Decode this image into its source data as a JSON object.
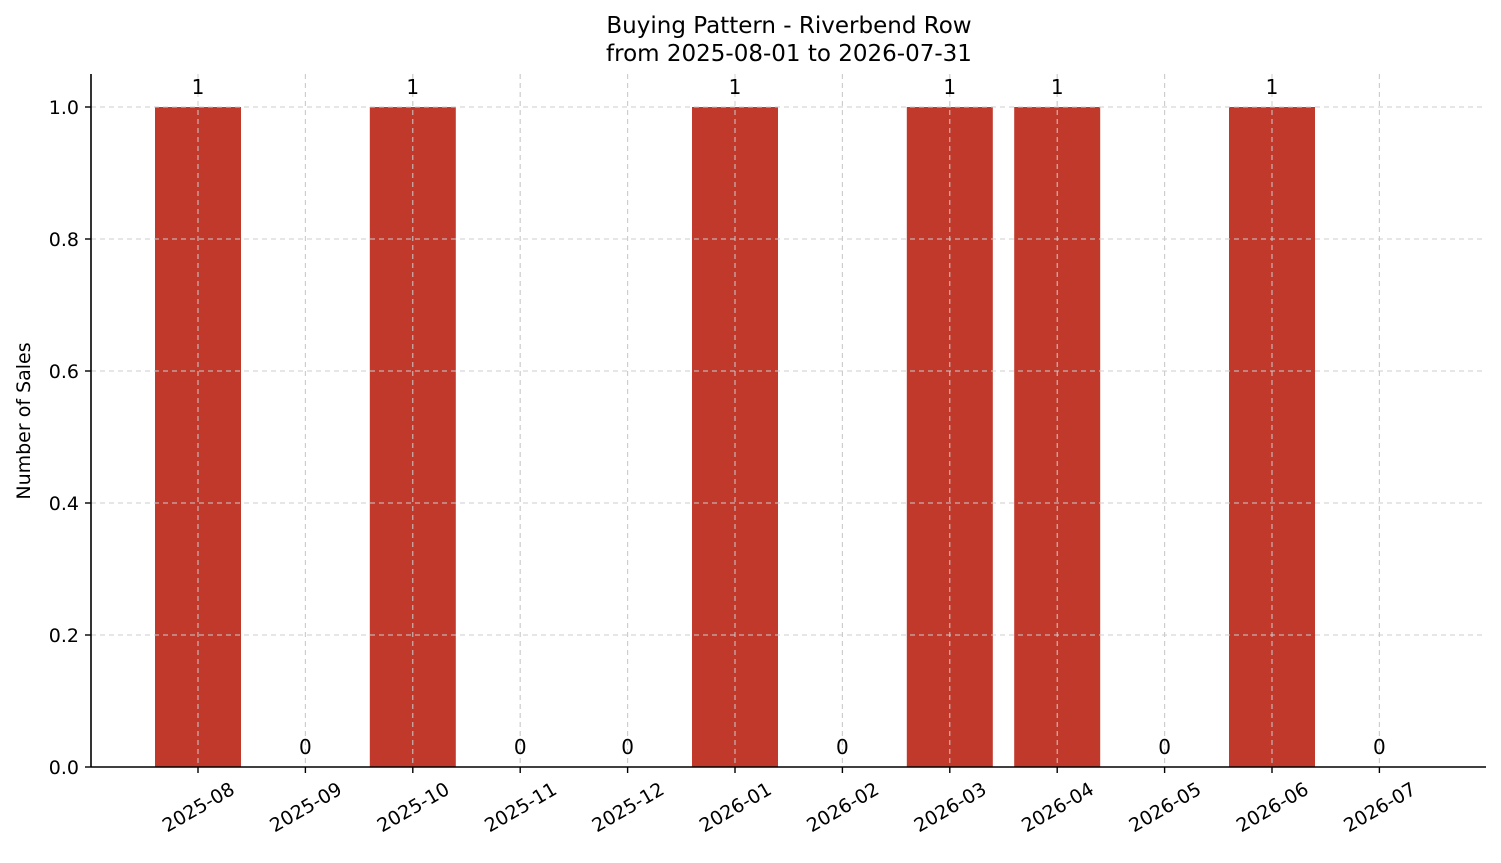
{
  "chart_data": {
    "type": "bar",
    "title": "Buying Pattern - Riverbend Row",
    "subtitle": "from 2025-08-01 to 2026-07-31",
    "xlabel": "",
    "ylabel": "Number of Sales",
    "categories": [
      "2025-08",
      "2025-09",
      "2025-10",
      "2025-11",
      "2025-12",
      "2026-01",
      "2026-02",
      "2026-03",
      "2026-04",
      "2026-05",
      "2026-06",
      "2026-07"
    ],
    "values": [
      1,
      0,
      1,
      0,
      0,
      1,
      0,
      1,
      1,
      0,
      1,
      0
    ],
    "data_labels": [
      "1",
      "0",
      "1",
      "0",
      "0",
      "1",
      "0",
      "1",
      "1",
      "0",
      "1",
      "0"
    ],
    "ylim": [
      0,
      1.05
    ],
    "yticks": [
      0.0,
      0.2,
      0.4,
      0.6,
      0.8,
      1.0
    ],
    "ytick_labels": [
      "0.0",
      "0.2",
      "0.4",
      "0.6",
      "0.8",
      "1.0"
    ],
    "bar_color": "#c0392b",
    "grid": true,
    "legend": "none"
  }
}
